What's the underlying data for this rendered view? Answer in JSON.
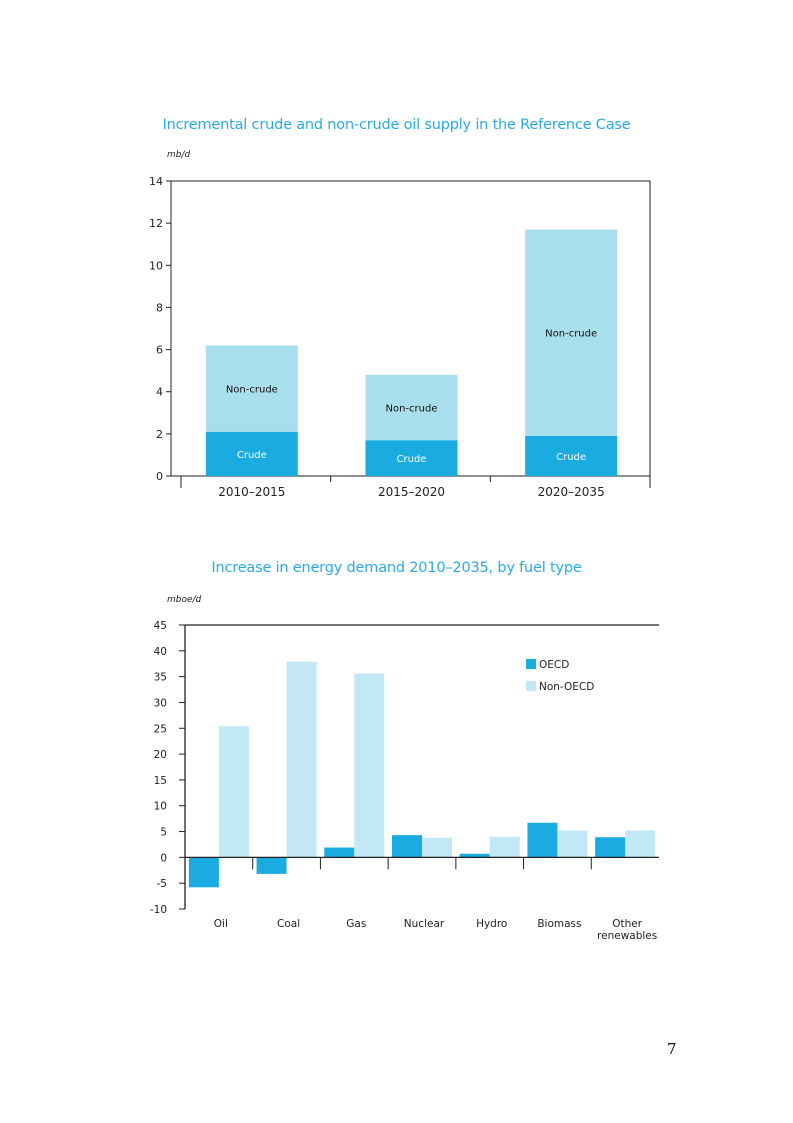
{
  "page_number": "7",
  "colors": {
    "title": "#29abe2",
    "crude": "#1aabe0",
    "non_crude": "#a9dfec",
    "oecd": "#1aabe0",
    "non_oecd": "#c2e7f5"
  },
  "chart_data": [
    {
      "type": "bar",
      "stacked": true,
      "title": "Incremental crude and non-crude oil supply in the Reference Case",
      "ylabel": "mb/d",
      "xlabel": "",
      "categories": [
        "2010–2015",
        "2015–2020",
        "2020–2035"
      ],
      "series": [
        {
          "name": "Crude",
          "values": [
            2.1,
            1.7,
            1.9
          ]
        },
        {
          "name": "Non-crude",
          "values": [
            4.1,
            3.1,
            9.8
          ]
        }
      ],
      "segment_labels": {
        "crude": [
          "Crude",
          "Crude",
          "Crude"
        ],
        "non_crude": [
          "Non-crude",
          "Non-crude",
          "Non-crude"
        ]
      },
      "ylim": [
        0,
        14
      ],
      "yticks": [
        "0",
        "2",
        "4",
        "6",
        "8",
        "10",
        "12",
        "14"
      ],
      "grid": false
    },
    {
      "type": "bar",
      "stacked": false,
      "title": "Increase in energy demand 2010–2035, by fuel type",
      "ylabel": "mboe/d",
      "xlabel": "",
      "categories": [
        "Oil",
        "Coal",
        "Gas",
        "Nuclear",
        "Hydro",
        "Biomass",
        "Other renewables"
      ],
      "category_lines": [
        [
          "Oil"
        ],
        [
          "Coal"
        ],
        [
          "Gas"
        ],
        [
          "Nuclear"
        ],
        [
          "Hydro"
        ],
        [
          "Biomass"
        ],
        [
          "Other",
          "renewables"
        ]
      ],
      "series": [
        {
          "name": "OECD",
          "values": [
            -5.8,
            -3.2,
            1.9,
            4.3,
            0.7,
            6.7,
            3.9
          ]
        },
        {
          "name": "Non-OECD",
          "values": [
            25.4,
            37.9,
            35.6,
            3.8,
            4.0,
            5.2,
            5.2
          ]
        }
      ],
      "ylim": [
        -10,
        45
      ],
      "yticks": [
        "-10",
        "-5",
        "0",
        "5",
        "10",
        "15",
        "20",
        "25",
        "30",
        "35",
        "40",
        "45"
      ],
      "legend_position": "top-right",
      "grid": false
    }
  ]
}
